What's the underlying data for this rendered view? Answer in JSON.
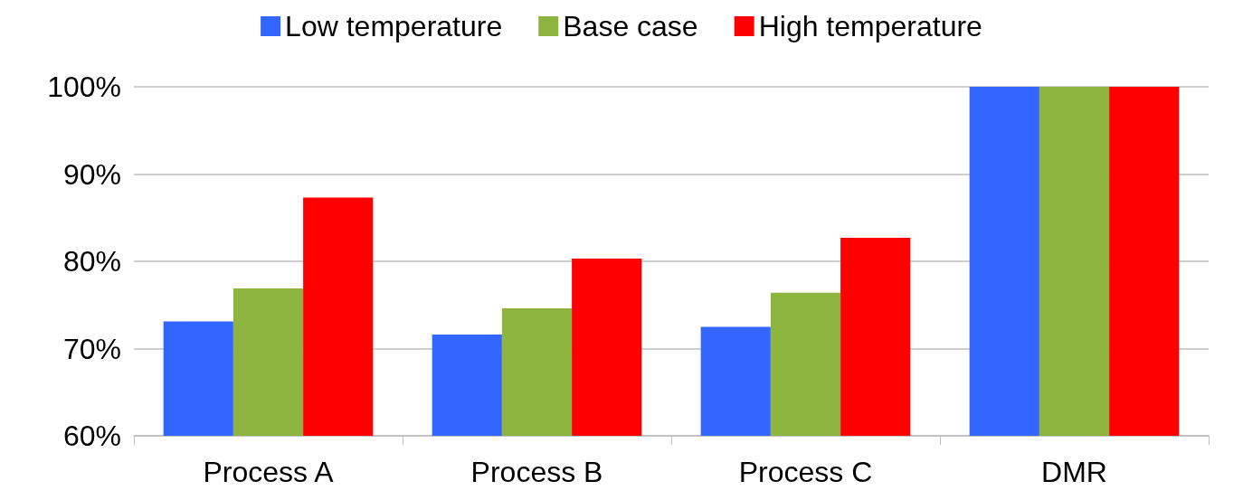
{
  "chart_data": {
    "type": "bar",
    "categories": [
      "Process A",
      "Process B",
      "Process C",
      "DMR"
    ],
    "series": [
      {
        "name": "Low temperature",
        "color": "#3366ff",
        "values": [
          73.1,
          71.6,
          72.5,
          100
        ]
      },
      {
        "name": "Base case",
        "color": "#8db43f",
        "values": [
          76.9,
          74.6,
          76.4,
          100
        ]
      },
      {
        "name": "High temperature",
        "color": "#ff0000",
        "values": [
          87.3,
          80.3,
          82.7,
          100
        ]
      }
    ],
    "ylim": [
      60,
      100
    ],
    "yticks": [
      {
        "value": 60,
        "label": "60%"
      },
      {
        "value": 70,
        "label": "70%"
      },
      {
        "value": 80,
        "label": "80%"
      },
      {
        "value": 90,
        "label": "90%"
      },
      {
        "value": 100,
        "label": "100%"
      }
    ],
    "grid": "y",
    "legend": "top"
  }
}
